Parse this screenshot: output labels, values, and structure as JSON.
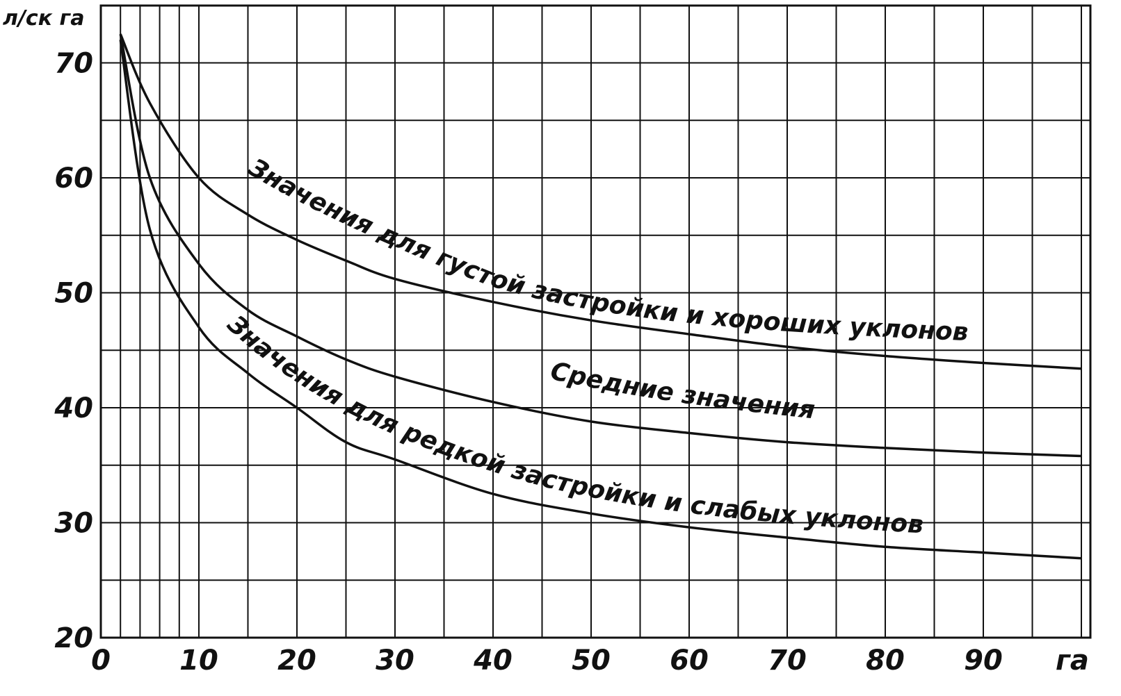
{
  "chart_data": {
    "type": "line",
    "xlabel": "га",
    "ylabel": "л/ск га",
    "xlim": [
      0,
      100
    ],
    "ylim": [
      20,
      75
    ],
    "grid": true,
    "x_ticks": [
      0,
      10,
      20,
      30,
      40,
      50,
      60,
      70,
      80,
      90
    ],
    "y_ticks": [
      20,
      30,
      40,
      50,
      60,
      70
    ],
    "series": [
      {
        "name": "Значения для густой застройки и хороших уклонов",
        "x": [
          2,
          5,
          10,
          15,
          20,
          25,
          30,
          40,
          50,
          60,
          70,
          80,
          90,
          100
        ],
        "y": [
          72.5,
          66.5,
          60,
          56.8,
          54.6,
          52.8,
          51.2,
          49.2,
          47.6,
          46.4,
          45.3,
          44.5,
          43.9,
          43.4
        ]
      },
      {
        "name": "Средние значения",
        "x": [
          2,
          5,
          10,
          15,
          20,
          25,
          30,
          40,
          50,
          60,
          70,
          80,
          90,
          100
        ],
        "y": [
          72.5,
          60,
          52.5,
          48.5,
          46.2,
          44.2,
          42.7,
          40.5,
          38.8,
          37.8,
          37,
          36.5,
          36.1,
          35.8
        ]
      },
      {
        "name": "Значения для редкой застройки и слабых уклонов",
        "x": [
          2,
          5,
          10,
          15,
          20,
          25,
          30,
          40,
          50,
          60,
          70,
          80,
          90,
          100
        ],
        "y": [
          72,
          55.5,
          47,
          43,
          40,
          37,
          35.5,
          32.5,
          30.8,
          29.6,
          28.7,
          27.9,
          27.4,
          26.9
        ]
      }
    ]
  }
}
